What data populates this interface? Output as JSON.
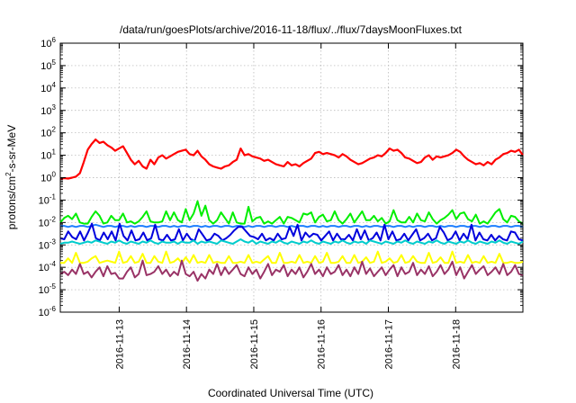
{
  "chart_data": {
    "type": "line",
    "title": "/data/run/goesPlots/archive/2016-11-18/flux/../flux/7daysMoonFluxes.txt",
    "xlabel": "Coordinated Universal Time (UTC)",
    "ylabel_parts": {
      "base": "protons/cm",
      "sup": "2",
      "rest": "-s-sr-MeV"
    },
    "y_scale": "log",
    "ylim": [
      1e-06,
      1000000.0
    ],
    "y_ticks": [
      {
        "base": "10",
        "exp": "-6",
        "value": -6
      },
      {
        "base": "10",
        "exp": "-5",
        "value": -5
      },
      {
        "base": "10",
        "exp": "-4",
        "value": -4
      },
      {
        "base": "10",
        "exp": "-3",
        "value": -3
      },
      {
        "base": "10",
        "exp": "-2",
        "value": -2
      },
      {
        "base": "10",
        "exp": "-1",
        "value": -1
      },
      {
        "base": "10",
        "exp": "0",
        "value": 0
      },
      {
        "base": "10",
        "exp": "1",
        "value": 1
      },
      {
        "base": "10",
        "exp": "2",
        "value": 2
      },
      {
        "base": "10",
        "exp": "3",
        "value": 3
      },
      {
        "base": "10",
        "exp": "4",
        "value": 4
      },
      {
        "base": "10",
        "exp": "5",
        "value": 5
      },
      {
        "base": "10",
        "exp": "6",
        "value": 6
      }
    ],
    "x_range_days": [
      2016,
      11,
      12.0,
      2016,
      11,
      19.0
    ],
    "x_start": "2016-11-12 03:00",
    "x_end": "2016-11-18 23:59",
    "x_tick_labels": [
      "2016-11-13",
      "2016-11-14",
      "2016-11-15",
      "2016-11-16",
      "2016-11-17",
      "2016-11-18"
    ],
    "grid": true,
    "legend": "none",
    "series": [
      {
        "color": "#ff0000",
        "log10_values": [
          -0.05,
          -0.02,
          -0.04,
          0.0,
          0.05,
          0.2,
          0.7,
          1.25,
          1.5,
          1.7,
          1.55,
          1.6,
          1.45,
          1.35,
          1.2,
          1.3,
          1.4,
          1.1,
          0.8,
          0.6,
          0.75,
          0.5,
          0.4,
          0.8,
          0.6,
          0.9,
          1.0,
          0.85,
          0.95,
          1.05,
          1.15,
          1.2,
          1.25,
          1.05,
          1.0,
          1.2,
          0.95,
          0.8,
          0.6,
          0.5,
          0.45,
          0.4,
          0.5,
          0.55,
          0.7,
          0.8,
          1.3,
          1.0,
          1.05,
          0.95,
          0.9,
          0.85,
          0.75,
          0.8,
          0.7,
          0.6,
          0.55,
          0.5,
          0.7,
          0.55,
          0.6,
          0.5,
          0.65,
          0.75,
          0.85,
          1.1,
          1.15,
          1.05,
          1.1,
          1.05,
          1.0,
          0.9,
          1.05,
          0.95,
          0.8,
          0.7,
          0.6,
          0.65,
          0.75,
          0.85,
          0.9,
          1.0,
          0.95,
          1.1,
          1.3,
          1.2,
          1.25,
          1.1,
          0.9,
          0.85,
          0.75,
          0.65,
          0.7,
          0.9,
          1.0,
          0.8,
          0.95,
          0.9,
          0.95,
          1.0,
          1.1,
          1.25,
          1.15,
          0.95,
          0.8,
          0.7,
          0.6,
          0.65,
          0.55,
          0.7,
          0.6,
          0.8,
          0.9,
          1.05,
          1.1,
          1.2,
          1.15,
          1.25,
          1.0
        ]
      },
      {
        "color": "#00ee00",
        "log10_values": [
          -2.0,
          -1.8,
          -1.7,
          -1.85,
          -1.6,
          -2.0,
          -2.05,
          -2.05,
          -1.75,
          -1.5,
          -1.7,
          -2.05,
          -2.0,
          -1.7,
          -1.9,
          -1.9,
          -1.6,
          -2.0,
          -1.95,
          -2.05,
          -1.95,
          -1.75,
          -1.5,
          -1.95,
          -2.0,
          -2.0,
          -1.95,
          -1.5,
          -1.9,
          -1.55,
          -1.9,
          -2.0,
          -1.4,
          -1.9,
          -1.6,
          -1.05,
          -1.7,
          -1.25,
          -1.9,
          -2.05,
          -1.9,
          -1.55,
          -1.8,
          -2.05,
          -1.55,
          -2.0,
          -2.05,
          -2.05,
          -1.3,
          -1.95,
          -1.8,
          -1.75,
          -2.05,
          -1.95,
          -2.05,
          -1.9,
          -1.75,
          -2.05,
          -1.75,
          -1.8,
          -1.9,
          -2.0,
          -1.6,
          -1.65,
          -1.55,
          -2.0,
          -1.75,
          -1.65,
          -1.95,
          -1.9,
          -1.5,
          -1.9,
          -2.05,
          -1.85,
          -1.6,
          -2.0,
          -1.75,
          -1.5,
          -1.9,
          -1.9,
          -1.7,
          -1.95,
          -1.8,
          -2.05,
          -1.95,
          -1.45,
          -1.9,
          -2.0,
          -2.0,
          -1.75,
          -2.0,
          -1.6,
          -1.9,
          -1.95,
          -1.55,
          -1.85,
          -2.05,
          -1.9,
          -1.8,
          -1.65,
          -1.45,
          -1.85,
          -1.6,
          -1.55,
          -1.85,
          -1.95,
          -1.65,
          -2.05,
          -1.95,
          -2.05,
          -1.8,
          -1.55,
          -1.4,
          -1.85,
          -2.0,
          -1.7,
          -1.75,
          -1.95,
          -2.05
        ]
      },
      {
        "color": "#1e7fff",
        "log10_values": [
          -2.15,
          -2.15,
          -2.2,
          -2.15,
          -2.2,
          -2.15,
          -2.15,
          -2.2,
          -2.15,
          -2.1,
          -2.15,
          -2.2,
          -2.15,
          -2.15,
          -2.2,
          -2.15,
          -2.15,
          -2.2,
          -2.15,
          -2.2,
          -2.15,
          -2.15,
          -2.2,
          -2.15,
          -2.15,
          -2.2,
          -2.15,
          -2.15,
          -2.2,
          -2.15,
          -2.2,
          -2.15,
          -2.15,
          -2.2,
          -2.15,
          -2.15,
          -2.2,
          -2.15,
          -2.2,
          -2.15,
          -2.15,
          -2.2,
          -2.15,
          -2.15,
          -2.2,
          -2.15,
          -2.15,
          -2.2,
          -2.15,
          -2.2,
          -2.15,
          -2.15,
          -2.2,
          -2.15,
          -2.15,
          -2.2,
          -2.15,
          -2.15,
          -2.2,
          -2.15,
          -2.2,
          -2.15,
          -2.15,
          -2.2,
          -2.15,
          -2.15,
          -2.2,
          -2.15,
          -2.2,
          -2.15,
          -2.15,
          -2.2,
          -2.15,
          -2.15,
          -2.2,
          -2.15,
          -2.15,
          -2.2,
          -2.15,
          -2.2,
          -2.15,
          -2.15,
          -2.2,
          -2.15,
          -2.15,
          -2.2,
          -2.15,
          -2.15,
          -2.2,
          -2.15,
          -2.2,
          -2.15,
          -2.15,
          -2.2,
          -2.15,
          -2.15,
          -2.2,
          -2.15,
          -2.2,
          -2.15,
          -2.15,
          -2.2,
          -2.15,
          -2.15,
          -2.2,
          -2.15,
          -2.15,
          -2.2,
          -2.15,
          -2.2,
          -2.15,
          -2.15,
          -2.2,
          -2.15,
          -2.15,
          -2.2,
          -2.15,
          -2.15,
          -2.2
        ]
      },
      {
        "color": "#0000dd",
        "log10_values": [
          -2.7,
          -2.75,
          -2.4,
          -2.65,
          -2.75,
          -2.4,
          -2.8,
          -2.45,
          -2.05,
          -2.7,
          -2.8,
          -2.45,
          -2.75,
          -2.4,
          -2.8,
          -2.05,
          -2.6,
          -2.8,
          -2.35,
          -2.8,
          -2.75,
          -2.45,
          -2.8,
          -2.7,
          -2.1,
          -2.75,
          -2.8,
          -2.55,
          -2.8,
          -2.75,
          -2.3,
          -2.8,
          -2.5,
          -2.75,
          -2.8,
          -2.3,
          -2.55,
          -2.8,
          -2.75,
          -2.5,
          -2.6,
          -2.8,
          -2.7,
          -2.55,
          -2.35,
          -2.2,
          -2.2,
          -2.4,
          -2.6,
          -2.65,
          -2.75,
          -2.5,
          -2.8,
          -2.7,
          -2.8,
          -2.5,
          -2.75,
          -2.7,
          -2.2,
          -2.6,
          -2.1,
          -2.8,
          -2.45,
          -2.65,
          -2.5,
          -2.55,
          -2.8,
          -2.6,
          -2.4,
          -2.8,
          -2.5,
          -2.75,
          -2.75,
          -2.55,
          -2.8,
          -2.3,
          -2.75,
          -2.35,
          -2.8,
          -2.7,
          -2.45,
          -2.8,
          -2.1,
          -2.75,
          -2.4,
          -2.8,
          -2.75,
          -2.5,
          -2.8,
          -2.55,
          -2.3,
          -2.8,
          -2.7,
          -2.5,
          -2.8,
          -2.7,
          -2.2,
          -2.45,
          -2.8,
          -2.7,
          -2.4,
          -2.8,
          -2.5,
          -2.75,
          -2.1,
          -2.8,
          -2.45,
          -2.75,
          -2.8,
          -2.55,
          -2.8,
          -2.6,
          -2.75,
          -2.8,
          -2.4,
          -2.45,
          -2.75,
          -2.8
        ]
      },
      {
        "color": "#00cccc",
        "log10_values": [
          -2.95,
          -2.9,
          -2.9,
          -2.85,
          -2.9,
          -2.95,
          -2.9,
          -2.85,
          -2.9,
          -2.8,
          -2.85,
          -2.9,
          -2.95,
          -2.85,
          -2.9,
          -2.8,
          -2.9,
          -2.95,
          -2.85,
          -2.9,
          -2.95,
          -2.85,
          -2.9,
          -2.8,
          -2.9,
          -2.95,
          -2.85,
          -2.9,
          -2.9,
          -2.85,
          -2.95,
          -2.85,
          -2.9,
          -2.9,
          -2.8,
          -2.95,
          -2.85,
          -2.9,
          -2.85,
          -2.9,
          -2.95,
          -2.8,
          -2.85,
          -2.9,
          -2.95,
          -2.85,
          -2.75,
          -2.85,
          -2.9,
          -2.8,
          -2.95,
          -2.85,
          -2.9,
          -2.95,
          -2.85,
          -2.9,
          -2.8,
          -2.9,
          -2.95,
          -2.85,
          -2.9,
          -2.95,
          -2.85,
          -2.9,
          -2.8,
          -2.9,
          -2.95,
          -2.85,
          -2.9,
          -2.95,
          -2.85,
          -2.9,
          -2.8,
          -2.9,
          -2.95,
          -2.85,
          -2.9,
          -2.85,
          -2.95,
          -2.8,
          -2.85,
          -2.9,
          -2.95,
          -2.85,
          -2.9,
          -2.95,
          -2.85,
          -2.9,
          -2.8,
          -2.9,
          -2.95,
          -2.85,
          -2.9,
          -2.95,
          -2.85,
          -2.9,
          -2.8,
          -2.9,
          -2.95,
          -2.85,
          -2.9,
          -2.95,
          -2.85,
          -2.9,
          -2.8,
          -2.9,
          -2.95,
          -2.85,
          -2.9,
          -2.95,
          -2.85,
          -2.9,
          -2.8,
          -2.9,
          -2.95,
          -2.85,
          -2.9,
          -2.95,
          -2.85
        ]
      },
      {
        "color": "#ffff00",
        "log10_values": [
          -3.8,
          -3.8,
          -3.6,
          -3.8,
          -3.35,
          -3.8,
          -3.8,
          -3.75,
          -3.6,
          -3.5,
          -3.8,
          -3.75,
          -3.7,
          -3.75,
          -3.8,
          -3.3,
          -3.8,
          -3.75,
          -3.5,
          -3.8,
          -3.75,
          -3.4,
          -3.8,
          -3.8,
          -3.5,
          -3.75,
          -3.8,
          -3.3,
          -3.8,
          -3.75,
          -3.6,
          -3.8,
          -3.55,
          -3.8,
          -3.45,
          -3.8,
          -3.75,
          -3.8,
          -3.45,
          -3.8,
          -3.75,
          -3.8,
          -3.8,
          -3.5,
          -3.8,
          -3.8,
          -3.75,
          -3.8,
          -3.45,
          -3.8,
          -3.75,
          -3.8,
          -3.65,
          -3.5,
          -3.8,
          -3.8,
          -3.35,
          -3.8,
          -3.8,
          -3.75,
          -3.8,
          -3.45,
          -3.8,
          -3.75,
          -3.8,
          -3.5,
          -3.8,
          -3.75,
          -3.35,
          -3.8,
          -3.8,
          -3.75,
          -3.5,
          -3.8,
          -3.8,
          -3.45,
          -3.8,
          -3.75,
          -3.55,
          -3.8,
          -3.75,
          -3.3,
          -3.8,
          -3.75,
          -3.6,
          -3.8,
          -3.75,
          -3.45,
          -3.8,
          -3.75,
          -3.5,
          -3.75,
          -3.8,
          -3.8,
          -3.35,
          -3.8,
          -3.75,
          -3.55,
          -3.8,
          -3.8,
          -3.3,
          -3.8,
          -3.75,
          -3.8,
          -3.45,
          -3.8,
          -3.75,
          -3.8,
          -3.5,
          -3.8,
          -3.75,
          -3.8,
          -3.4,
          -3.8,
          -3.8,
          -3.75,
          -3.8,
          -3.8,
          -3.75
        ]
      },
      {
        "color": "#993366",
        "log10_values": [
          -4.3,
          -4.2,
          -4.35,
          -4.1,
          -4.3,
          -3.85,
          -4.3,
          -4.2,
          -4.45,
          -4.2,
          -4.0,
          -4.4,
          -3.95,
          -4.3,
          -4.25,
          -4.5,
          -4.5,
          -4.2,
          -4.0,
          -4.45,
          -4.3,
          -3.7,
          -4.35,
          -4.3,
          -4.2,
          -3.95,
          -4.3,
          -4.1,
          -4.4,
          -4.2,
          -4.35,
          -3.7,
          -4.3,
          -4.4,
          -4.2,
          -4.6,
          -4.3,
          -4.5,
          -4.1,
          -4.3,
          -3.85,
          -4.35,
          -4.0,
          -4.3,
          -4.1,
          -3.9,
          -4.3,
          -4.4,
          -4.0,
          -4.3,
          -4.1,
          -4.5,
          -4.2,
          -3.85,
          -4.35,
          -4.1,
          -4.2,
          -3.9,
          -4.4,
          -4.1,
          -4.3,
          -4.0,
          -4.45,
          -4.2,
          -3.85,
          -4.3,
          -4.1,
          -4.4,
          -4.0,
          -4.3,
          -4.2,
          -3.9,
          -4.35,
          -4.1,
          -4.4,
          -4.0,
          -4.3,
          -3.75,
          -4.3,
          -4.05,
          -4.4,
          -4.2,
          -4.0,
          -4.35,
          -4.1,
          -3.9,
          -4.4,
          -4.0,
          -4.3,
          -4.2,
          -3.8,
          -4.35,
          -4.1,
          -4.3,
          -3.95,
          -4.4,
          -4.2,
          -3.9,
          -4.3,
          -4.1,
          -3.75,
          -4.35,
          -4.0,
          -4.5,
          -4.2,
          -3.9,
          -4.3,
          -4.1,
          -3.95,
          -4.35,
          -4.2,
          -4.0,
          -4.3,
          -3.85,
          -4.35,
          -4.2,
          -3.9,
          -4.3,
          -4.35
        ]
      }
    ]
  }
}
